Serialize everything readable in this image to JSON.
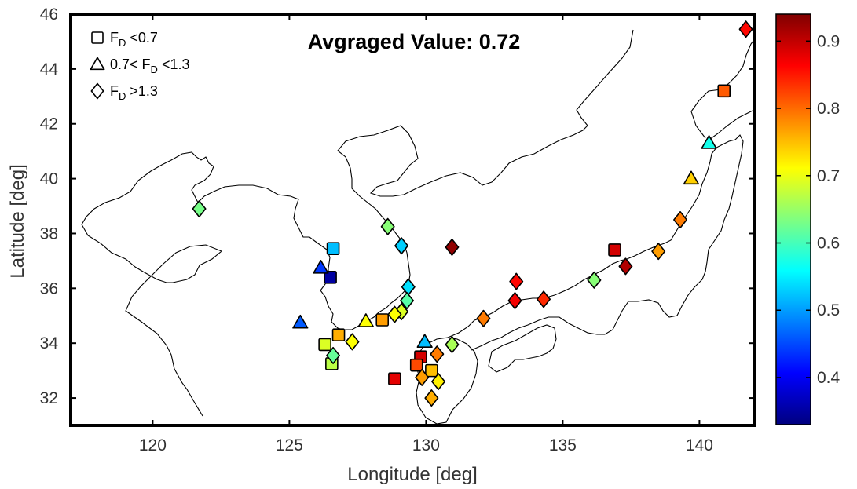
{
  "chart_data": {
    "type": "scatter",
    "title": "Avgraged Value: 0.72",
    "xlabel": "Longitude [deg]",
    "ylabel": "Latitude [deg]",
    "xlim": [
      117,
      142
    ],
    "ylim": [
      31,
      46
    ],
    "xticks": [
      "120",
      "125",
      "130",
      "135",
      "140"
    ],
    "yticks": [
      "32",
      "34",
      "36",
      "38",
      "40",
      "42",
      "44",
      "46"
    ],
    "grid": false,
    "background_map": "coastlines",
    "legend": {
      "placement": "top-left",
      "entries": [
        {
          "marker": "square",
          "pre": "",
          "sub": "D",
          "post": " <0.7",
          "main": "F"
        },
        {
          "marker": "triangle",
          "pre": "0.7< ",
          "main": "F",
          "sub": "D",
          "post": " <1.3"
        },
        {
          "marker": "diamond",
          "pre": "",
          "main": "F",
          "sub": "D",
          "post": " >1.3"
        }
      ]
    },
    "colorbar": {
      "colormap": "jet",
      "range": [
        0.33,
        0.94
      ],
      "ticks": [
        "0.4",
        "0.5",
        "0.6",
        "0.7",
        "0.8",
        "0.9"
      ]
    },
    "series": [
      {
        "marker": "square",
        "points": [
          {
            "x": 126.6,
            "y": 37.45,
            "c": 0.52
          },
          {
            "x": 126.5,
            "y": 36.4,
            "c": 0.35
          },
          {
            "x": 126.8,
            "y": 34.3,
            "c": 0.76
          },
          {
            "x": 126.3,
            "y": 33.95,
            "c": 0.69
          },
          {
            "x": 126.55,
            "y": 33.25,
            "c": 0.67
          },
          {
            "x": 128.4,
            "y": 34.85,
            "c": 0.77
          },
          {
            "x": 128.85,
            "y": 32.7,
            "c": 0.88
          },
          {
            "x": 129.8,
            "y": 33.5,
            "c": 0.89
          },
          {
            "x": 129.65,
            "y": 33.2,
            "c": 0.82
          },
          {
            "x": 130.2,
            "y": 33.0,
            "c": 0.75
          },
          {
            "x": 136.9,
            "y": 37.4,
            "c": 0.89
          },
          {
            "x": 140.9,
            "y": 43.2,
            "c": 0.81
          }
        ]
      },
      {
        "marker": "triangle",
        "points": [
          {
            "x": 126.15,
            "y": 36.75,
            "c": 0.44
          },
          {
            "x": 125.4,
            "y": 34.75,
            "c": 0.46
          },
          {
            "x": 127.8,
            "y": 34.8,
            "c": 0.71
          },
          {
            "x": 129.95,
            "y": 34.05,
            "c": 0.52
          },
          {
            "x": 140.35,
            "y": 41.3,
            "c": 0.57
          },
          {
            "x": 139.7,
            "y": 40.0,
            "c": 0.74
          }
        ]
      },
      {
        "marker": "diamond",
        "points": [
          {
            "x": 141.7,
            "y": 45.45,
            "c": 0.86
          },
          {
            "x": 121.7,
            "y": 38.9,
            "c": 0.63
          },
          {
            "x": 128.6,
            "y": 38.25,
            "c": 0.64
          },
          {
            "x": 129.1,
            "y": 37.55,
            "c": 0.53
          },
          {
            "x": 129.35,
            "y": 36.05,
            "c": 0.54
          },
          {
            "x": 129.3,
            "y": 35.55,
            "c": 0.61
          },
          {
            "x": 129.1,
            "y": 35.15,
            "c": 0.69
          },
          {
            "x": 128.85,
            "y": 35.05,
            "c": 0.71
          },
          {
            "x": 127.3,
            "y": 34.05,
            "c": 0.71
          },
          {
            "x": 126.6,
            "y": 33.55,
            "c": 0.62
          },
          {
            "x": 130.95,
            "y": 37.5,
            "c": 0.93
          },
          {
            "x": 130.4,
            "y": 33.6,
            "c": 0.79
          },
          {
            "x": 130.95,
            "y": 33.95,
            "c": 0.66
          },
          {
            "x": 129.85,
            "y": 32.75,
            "c": 0.77
          },
          {
            "x": 130.45,
            "y": 32.6,
            "c": 0.72
          },
          {
            "x": 130.2,
            "y": 32.0,
            "c": 0.76
          },
          {
            "x": 132.1,
            "y": 34.9,
            "c": 0.79
          },
          {
            "x": 133.3,
            "y": 36.25,
            "c": 0.86
          },
          {
            "x": 133.25,
            "y": 35.55,
            "c": 0.87
          },
          {
            "x": 134.3,
            "y": 35.6,
            "c": 0.84
          },
          {
            "x": 136.15,
            "y": 36.3,
            "c": 0.64
          },
          {
            "x": 137.3,
            "y": 36.8,
            "c": 0.91
          },
          {
            "x": 138.5,
            "y": 37.35,
            "c": 0.77
          },
          {
            "x": 139.3,
            "y": 38.5,
            "c": 0.79
          }
        ]
      }
    ]
  }
}
